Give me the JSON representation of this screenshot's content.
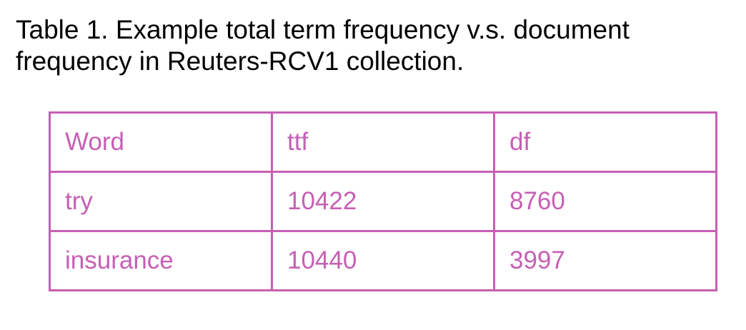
{
  "caption": {
    "line1": "Table 1. Example total term frequency v.s. document",
    "line2": "frequency in Reuters-RCV1 collection."
  },
  "table": {
    "headers": [
      "Word",
      "ttf",
      "df"
    ],
    "rows": [
      [
        "try",
        "10422",
        "8760"
      ],
      [
        "insurance",
        "10440",
        "3997"
      ]
    ],
    "border_color": "#c75fb4",
    "text_color": "#c75fb4"
  }
}
